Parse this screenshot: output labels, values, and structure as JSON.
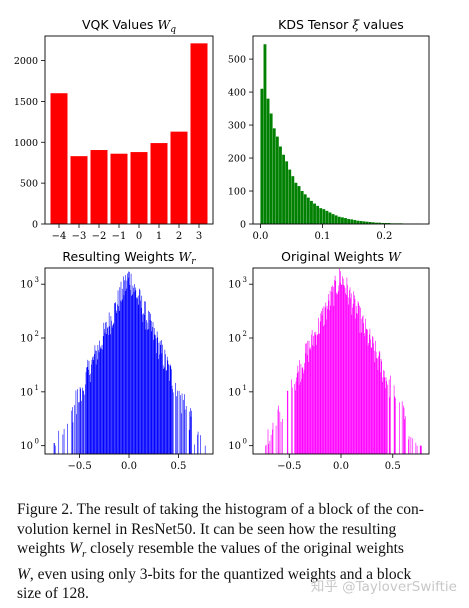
{
  "chart_data": [
    {
      "type": "bar",
      "title": "VQK Values W_q",
      "title_main": "VQK Values ",
      "title_sym": "W",
      "title_sub": "q",
      "color": "#ff0000",
      "categories": [
        -4,
        -3,
        -2,
        -1,
        0,
        1,
        2,
        3
      ],
      "values": [
        1600,
        830,
        905,
        860,
        880,
        990,
        1130,
        2210
      ],
      "xlim": [
        -4.7,
        3.7
      ],
      "ylim": [
        0,
        2300
      ],
      "xticks": [
        -4,
        -3,
        -2,
        -1,
        0,
        1,
        2,
        3
      ],
      "xticklabels": [
        "−4",
        "−3",
        "−2",
        "−1",
        "0",
        "1",
        "2",
        "3"
      ],
      "yticks": [
        0,
        500,
        1000,
        1500,
        2000
      ],
      "yticklabels": [
        "0",
        "500",
        "1000",
        "1500",
        "2000"
      ],
      "grid": false
    },
    {
      "type": "bar",
      "title": "KDS Tensor ξ values",
      "title_main": "KDS Tensor ",
      "title_sym": "ξ",
      "title_tail": " values",
      "color": "#008000",
      "bin_start": 0.0,
      "bin_width": 0.005,
      "values": [
        410,
        545,
        380,
        335,
        290,
        265,
        235,
        210,
        190,
        165,
        145,
        125,
        115,
        100,
        90,
        80,
        70,
        62,
        55,
        48,
        45,
        40,
        35,
        30,
        26,
        22,
        20,
        18,
        15,
        14,
        12,
        10,
        9,
        8,
        7,
        6,
        5,
        4,
        4,
        3,
        3,
        3,
        2,
        2,
        2,
        2,
        1,
        1,
        1,
        1,
        1,
        1
      ],
      "xlim": [
        -0.012,
        0.272
      ],
      "ylim": [
        0,
        570
      ],
      "xticks": [
        0.0,
        0.1,
        0.2
      ],
      "xticklabels": [
        "0.0",
        "0.1",
        "0.2"
      ],
      "yticks": [
        0,
        100,
        200,
        300,
        400,
        500
      ],
      "yticklabels": [
        "0",
        "100",
        "200",
        "300",
        "400",
        "500"
      ],
      "grid": false
    },
    {
      "type": "bar",
      "title": "Resulting Weights W_r",
      "title_main": "Resulting Weights ",
      "title_sym": "W",
      "title_sub": "r",
      "color": "#0000ff",
      "distribution": "laplace",
      "peak": 1400,
      "scale": 0.1,
      "yscale": "log",
      "xlim": [
        -0.85,
        0.85
      ],
      "ylim": [
        0.7,
        2000
      ],
      "xticks": [
        -0.5,
        0.0,
        0.5
      ],
      "xticklabels": [
        "−0.5",
        "0.0",
        "0.5"
      ],
      "yticks": [
        1,
        10,
        100,
        1000
      ],
      "yticklabels": [
        {
          "base": "10",
          "exp": "0"
        },
        {
          "base": "10",
          "exp": "1"
        },
        {
          "base": "10",
          "exp": "2"
        },
        {
          "base": "10",
          "exp": "3"
        }
      ],
      "grid": false
    },
    {
      "type": "bar",
      "title": "Original Weights W",
      "title_main": "Original Weights ",
      "title_sym": "W",
      "color": "#ff00ff",
      "distribution": "laplace",
      "peak": 1400,
      "scale": 0.1,
      "yscale": "log",
      "xlim": [
        -0.85,
        0.85
      ],
      "ylim": [
        0.7,
        2000
      ],
      "xticks": [
        -0.5,
        0.0,
        0.5
      ],
      "xticklabels": [
        "−0.5",
        "0.0",
        "0.5"
      ],
      "yticks": [
        1,
        10,
        100,
        1000
      ],
      "yticklabels": [
        {
          "base": "10",
          "exp": "0"
        },
        {
          "base": "10",
          "exp": "1"
        },
        {
          "base": "10",
          "exp": "2"
        },
        {
          "base": "10",
          "exp": "3"
        }
      ],
      "grid": false
    }
  ],
  "caption": {
    "p1": "Figure 2. The result of taking the histogram of a block of the con-",
    "p2a": "volution kernel in ResNet50.  It can be seen how the resulting",
    "p3a": "weights ",
    "p3sym": "W",
    "p3sub": "r",
    "p3b": " closely resemble the values of the original weights",
    "p4sym": "W",
    "p4b": ", even using only 3-bits for the quantized weights and a block",
    "p5": "size of 128."
  },
  "watermark": "知乎 @TayloverSwiftie"
}
